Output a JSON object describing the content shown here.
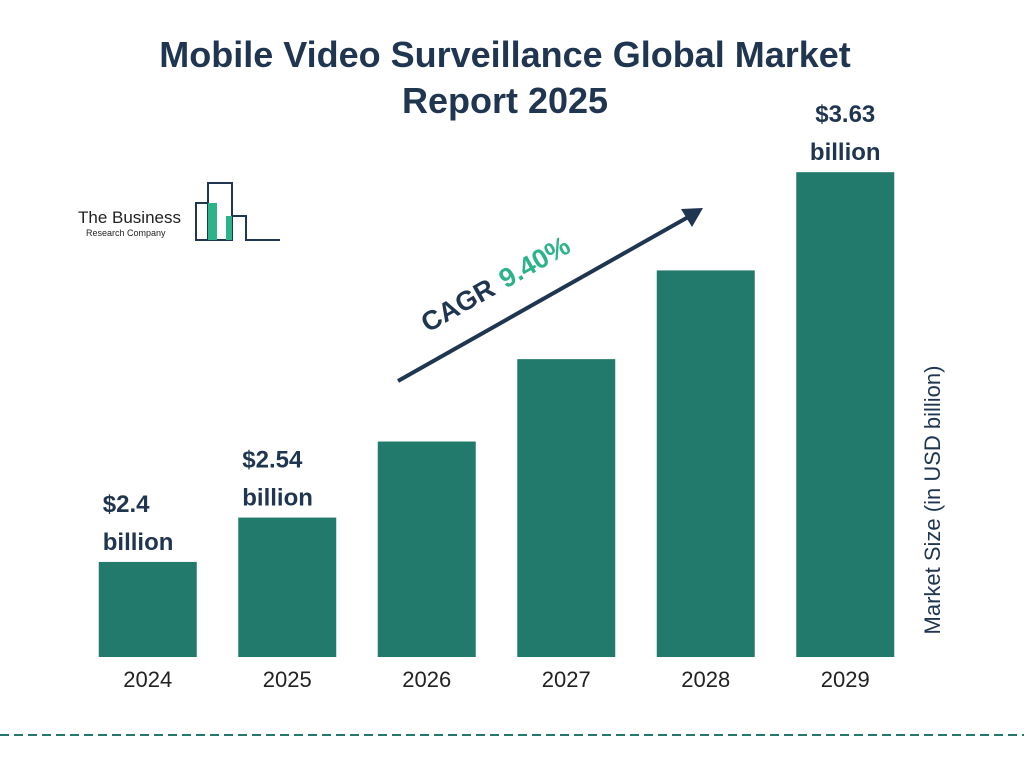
{
  "chart_data": {
    "type": "bar",
    "title": "Mobile Video Surveillance Global Market Report 2025",
    "categories": [
      "2024",
      "2025",
      "2026",
      "2027",
      "2028",
      "2029"
    ],
    "values": [
      2.4,
      2.54,
      2.78,
      3.04,
      3.32,
      3.63
    ],
    "value_labels": [
      "$2.4 billion",
      "$2.54 billion",
      null,
      null,
      null,
      "$3.63 billion"
    ],
    "color": "#217a6b",
    "ylim": [
      2.1,
      3.7
    ],
    "ylabel": "Market Size (in USD billion)",
    "annotation": {
      "label": "CAGR",
      "value": "9.40%"
    }
  },
  "logo": {
    "line1": "The Business",
    "line2": "Research Company"
  }
}
